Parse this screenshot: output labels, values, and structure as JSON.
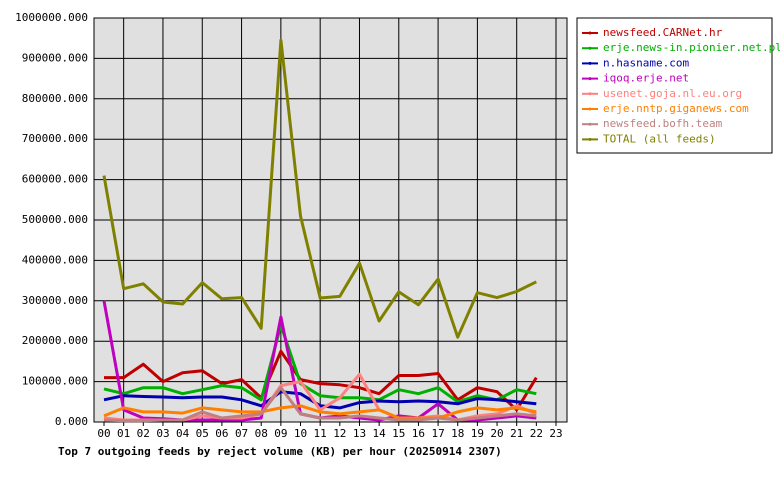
{
  "chart_data": {
    "type": "line",
    "xlabel": "Top 7 outgoing feeds by reject volume (KB) per hour (20250914 2307)",
    "categories": [
      "00",
      "01",
      "02",
      "03",
      "04",
      "05",
      "06",
      "07",
      "08",
      "09",
      "10",
      "11",
      "12",
      "13",
      "14",
      "15",
      "16",
      "17",
      "18",
      "19",
      "20",
      "21",
      "22",
      "23"
    ],
    "ylim": [
      0,
      1000000
    ],
    "yticks": [
      {
        "value": 0,
        "label": "0.000"
      },
      {
        "value": 100000,
        "label": "100000.000"
      },
      {
        "value": 200000,
        "label": "200000.000"
      },
      {
        "value": 300000,
        "label": "300000.000"
      },
      {
        "value": 400000,
        "label": "400000.000"
      },
      {
        "value": 500000,
        "label": "500000.000"
      },
      {
        "value": 600000,
        "label": "600000.000"
      },
      {
        "value": 700000,
        "label": "700000.000"
      },
      {
        "value": 800000,
        "label": "800000.000"
      },
      {
        "value": 900000,
        "label": "900000.000"
      },
      {
        "value": 1000000,
        "label": "1000000.000"
      }
    ],
    "grid": true,
    "legend": "right",
    "series": [
      {
        "name": "newsfeed.CARNet.hr",
        "color": "#c00000",
        "values": [
          110000,
          110000,
          143000,
          100000,
          122000,
          127000,
          95000,
          105000,
          60000,
          175000,
          105000,
          95000,
          92000,
          85000,
          70000,
          115000,
          115000,
          120000,
          55000,
          85000,
          75000,
          30000,
          110000,
          null
        ]
      },
      {
        "name": "erje.news-in.pionier.net.pl",
        "color": "#00b000",
        "values": [
          82000,
          70000,
          85000,
          85000,
          70000,
          80000,
          90000,
          85000,
          55000,
          240000,
          95000,
          65000,
          60000,
          60000,
          55000,
          80000,
          70000,
          85000,
          50000,
          65000,
          55000,
          80000,
          70000,
          null
        ]
      },
      {
        "name": "n.hasname.com",
        "color": "#0000b0",
        "values": [
          55000,
          65000,
          63000,
          62000,
          60000,
          62000,
          62000,
          55000,
          40000,
          75000,
          70000,
          40000,
          35000,
          48000,
          52000,
          50000,
          52000,
          50000,
          45000,
          58000,
          55000,
          50000,
          45000,
          null
        ]
      },
      {
        "name": "iqoq.erje.net",
        "color": "#c000c0",
        "values": [
          300000,
          30000,
          10000,
          8000,
          5000,
          5000,
          5000,
          5000,
          10000,
          260000,
          20000,
          10000,
          15000,
          10000,
          5000,
          15000,
          10000,
          45000,
          5000,
          5000,
          10000,
          15000,
          10000,
          null
        ]
      },
      {
        "name": "usenet.goja.nl.eu.org",
        "color": "#ff8080",
        "values": [
          10000,
          5000,
          5000,
          5000,
          5000,
          15000,
          10000,
          10000,
          20000,
          90000,
          100000,
          30000,
          60000,
          118000,
          30000,
          10000,
          10000,
          15000,
          5000,
          15000,
          20000,
          40000,
          20000,
          null
        ]
      },
      {
        "name": "erje.nntp.giganews.com",
        "color": "#ff8000",
        "values": [
          15000,
          35000,
          25000,
          25000,
          22000,
          35000,
          30000,
          25000,
          25000,
          35000,
          40000,
          25000,
          20000,
          25000,
          30000,
          10000,
          10000,
          10000,
          25000,
          35000,
          30000,
          35000,
          25000,
          null
        ]
      },
      {
        "name": "newsfeed.bofh.team",
        "color": "#c08080",
        "values": [
          5000,
          3000,
          3000,
          5000,
          5000,
          25000,
          10000,
          15000,
          20000,
          85000,
          20000,
          10000,
          10000,
          15000,
          10000,
          5000,
          5000,
          10000,
          5000,
          10000,
          15000,
          20000,
          15000,
          null
        ]
      },
      {
        "name": "TOTAL (all feeds)",
        "color": "#808000",
        "values": [
          610000,
          330000,
          342000,
          297000,
          292000,
          345000,
          305000,
          308000,
          232000,
          945000,
          510000,
          307000,
          311000,
          393000,
          250000,
          322000,
          290000,
          354000,
          210000,
          320000,
          308000,
          323000,
          347000,
          null
        ]
      }
    ]
  }
}
